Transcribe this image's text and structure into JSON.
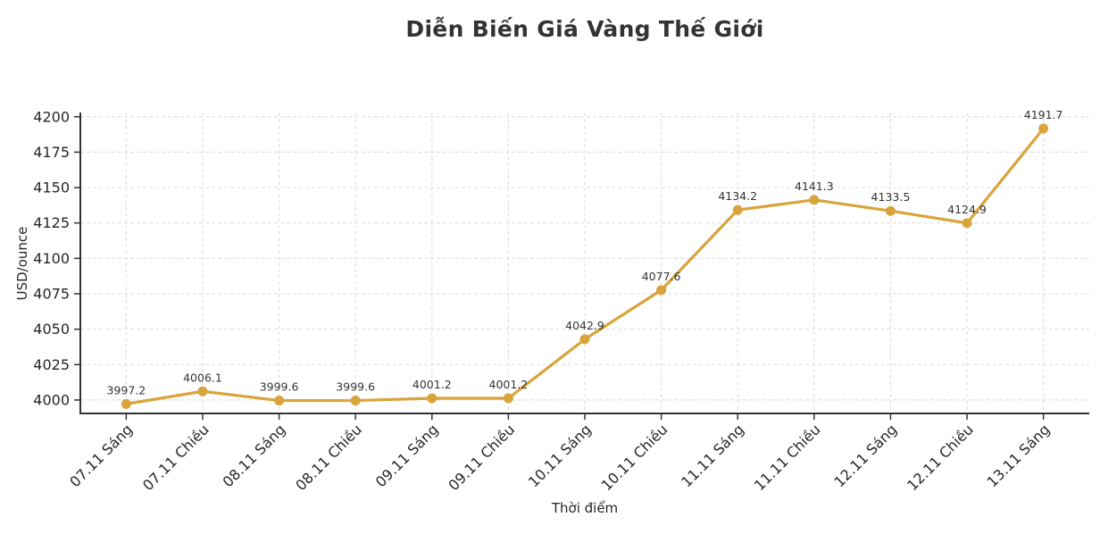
{
  "chart_data": {
    "type": "line",
    "title": "Diễn Biến Giá Vàng Thế Giới",
    "xlabel": "Thời điểm",
    "ylabel": "USD/ounce",
    "categories": [
      "07.11 Sáng",
      "07.11 Chiều",
      "08.11 Sáng",
      "08.11 Chiều",
      "09.11 Sáng",
      "09.11 Chiều",
      "10.11 Sáng",
      "10.11 Chiều",
      "11.11 Sáng",
      "11.11 Chiều",
      "12.11 Sáng",
      "12.11 Chiều",
      "13.11 Sáng"
    ],
    "values": [
      3997.2,
      4006.1,
      3999.6,
      3999.6,
      4001.2,
      4001.2,
      4042.9,
      4077.6,
      4134.2,
      4141.3,
      4133.5,
      4124.9,
      4191.7
    ],
    "point_labels": [
      "3997.2",
      "4006.1",
      "3999.6",
      "3999.6",
      "4001.2",
      "4001.2",
      "4042.9",
      "4077.6",
      "4134.2",
      "4141.3",
      "4133.5",
      "4124.9",
      "4191.7"
    ],
    "yticks": [
      4000,
      4025,
      4050,
      4075,
      4100,
      4125,
      4150,
      4175,
      4200
    ],
    "ylim": [
      3990.5,
      4203
    ],
    "grid": true,
    "grid_style": "dashed",
    "legend": "none",
    "line_color": "#d9a43c",
    "marker": "circle",
    "title_color": "#333333",
    "tick_color": "#262626"
  }
}
